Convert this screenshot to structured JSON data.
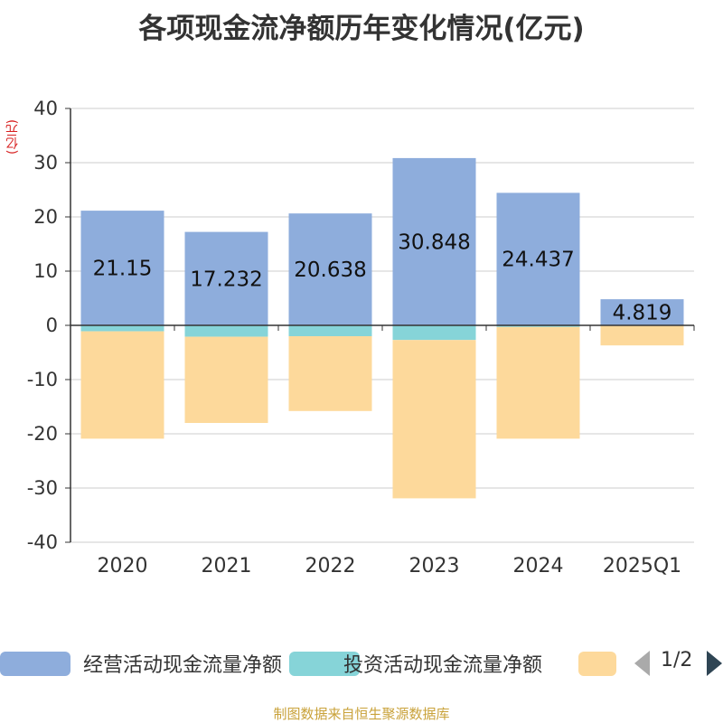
{
  "title": "各项现金流净额历年变化情况(亿元)",
  "unit_label": "(亿元)",
  "source": "制图数据来自恒生聚源数据库",
  "pager": "1/2",
  "colors": {
    "operating": "#8eaddc",
    "investing": "#86d4d8",
    "financing": "#fdd99b",
    "grid": "#cccccc",
    "axis": "#333333"
  },
  "chart_data": {
    "type": "bar",
    "stacked": true,
    "categories": [
      "2020",
      "2021",
      "2022",
      "2023",
      "2024",
      "2025Q1"
    ],
    "ylim": [
      -40,
      40
    ],
    "yticks": [
      40,
      30,
      20,
      10,
      0,
      -10,
      -20,
      -30,
      -40
    ],
    "grid": true,
    "legend_position": "bottom",
    "series": [
      {
        "name": "经营活动现金流量净额",
        "values": [
          21.15,
          17.232,
          20.638,
          30.848,
          24.437,
          4.819
        ],
        "show_labels": true
      },
      {
        "name": "投资活动现金流量净额",
        "values": [
          -1.1,
          -2.1,
          -2.0,
          -2.7,
          -0.3,
          -0.1
        ]
      },
      {
        "name": "",
        "values": [
          -19.8,
          -15.9,
          -13.8,
          -29.2,
          -20.6,
          -3.6
        ]
      }
    ]
  }
}
